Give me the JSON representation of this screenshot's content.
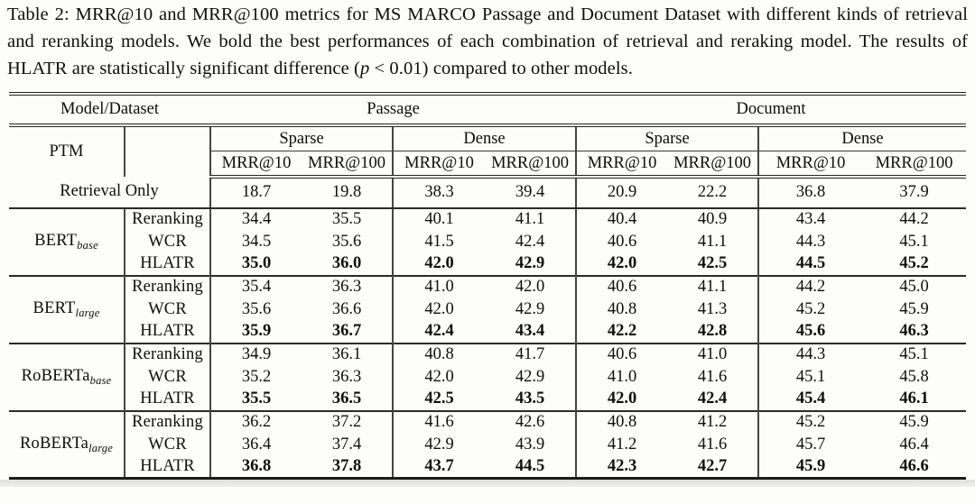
{
  "caption": {
    "text_before_p": "Table 2: MRR@10 and MRR@100 metrics for MS MARCO Passage and Document Dataset with different kinds of retrieval and reranking models. We bold the best performances of each combination of retrieval and reraking model. The results of HLATR are statistically significant difference (",
    "p_var": "p",
    "text_after_p": " < 0.01) compared to other models."
  },
  "table": {
    "corner_label": "Model/Dataset",
    "ptm_label": "PTM",
    "dataset_groups": [
      {
        "label": "Passage"
      },
      {
        "label": "Document"
      }
    ],
    "method_groups": [
      "Sparse",
      "Dense",
      "Sparse",
      "Dense"
    ],
    "metric_headers": [
      "MRR@10",
      "MRR@100",
      "MRR@10",
      "MRR@100",
      "MRR@10",
      "MRR@100",
      "MRR@10",
      "MRR@100"
    ],
    "retrieval_only": {
      "label": "Retrieval Only",
      "values": [
        "18.7",
        "19.8",
        "38.3",
        "39.4",
        "20.9",
        "22.2",
        "36.8",
        "37.9"
      ]
    },
    "sections": [
      {
        "model": "BERT",
        "model_subscript": "base",
        "rows": [
          {
            "method": "Reranking",
            "bold": false,
            "values": [
              "34.4",
              "35.5",
              "40.1",
              "41.1",
              "40.4",
              "40.9",
              "43.4",
              "44.2"
            ]
          },
          {
            "method": "WCR",
            "bold": false,
            "values": [
              "34.5",
              "35.6",
              "41.5",
              "42.4",
              "40.6",
              "41.1",
              "44.3",
              "45.1"
            ]
          },
          {
            "method": "HLATR",
            "bold": true,
            "values": [
              "35.0",
              "36.0",
              "42.0",
              "42.9",
              "42.0",
              "42.5",
              "44.5",
              "45.2"
            ]
          }
        ]
      },
      {
        "model": "BERT",
        "model_subscript": "large",
        "rows": [
          {
            "method": "Reranking",
            "bold": false,
            "values": [
              "35.4",
              "36.3",
              "41.0",
              "42.0",
              "40.6",
              "41.1",
              "44.2",
              "45.0"
            ]
          },
          {
            "method": "WCR",
            "bold": false,
            "values": [
              "35.6",
              "36.6",
              "42.0",
              "42.9",
              "40.8",
              "41.3",
              "45.2",
              "45.9"
            ]
          },
          {
            "method": "HLATR",
            "bold": true,
            "values": [
              "35.9",
              "36.7",
              "42.4",
              "43.4",
              "42.2",
              "42.8",
              "45.6",
              "46.3"
            ]
          }
        ]
      },
      {
        "model": "RoBERTa",
        "model_subscript": "base",
        "rows": [
          {
            "method": "Reranking",
            "bold": false,
            "values": [
              "34.9",
              "36.1",
              "40.8",
              "41.7",
              "40.6",
              "41.0",
              "44.3",
              "45.1"
            ]
          },
          {
            "method": "WCR",
            "bold": false,
            "values": [
              "35.2",
              "36.3",
              "42.0",
              "42.9",
              "41.0",
              "41.6",
              "45.1",
              "45.8"
            ]
          },
          {
            "method": "HLATR",
            "bold": true,
            "values": [
              "35.5",
              "36.5",
              "42.5",
              "43.5",
              "42.0",
              "42.4",
              "45.4",
              "46.1"
            ]
          }
        ]
      },
      {
        "model": "RoBERTa",
        "model_subscript": "large",
        "rows": [
          {
            "method": "Reranking",
            "bold": false,
            "values": [
              "36.2",
              "37.2",
              "41.6",
              "42.6",
              "40.8",
              "41.2",
              "45.2",
              "45.9"
            ]
          },
          {
            "method": "WCR",
            "bold": false,
            "values": [
              "36.4",
              "37.4",
              "42.9",
              "43.9",
              "41.2",
              "41.6",
              "45.7",
              "46.4"
            ]
          },
          {
            "method": "HLATR",
            "bold": true,
            "values": [
              "36.8",
              "37.8",
              "43.7",
              "44.5",
              "42.3",
              "42.7",
              "45.9",
              "46.6"
            ]
          }
        ]
      }
    ]
  },
  "colors": {
    "text": "#0e0e0e",
    "rule": "#242424",
    "background": "#fdfdfc"
  }
}
